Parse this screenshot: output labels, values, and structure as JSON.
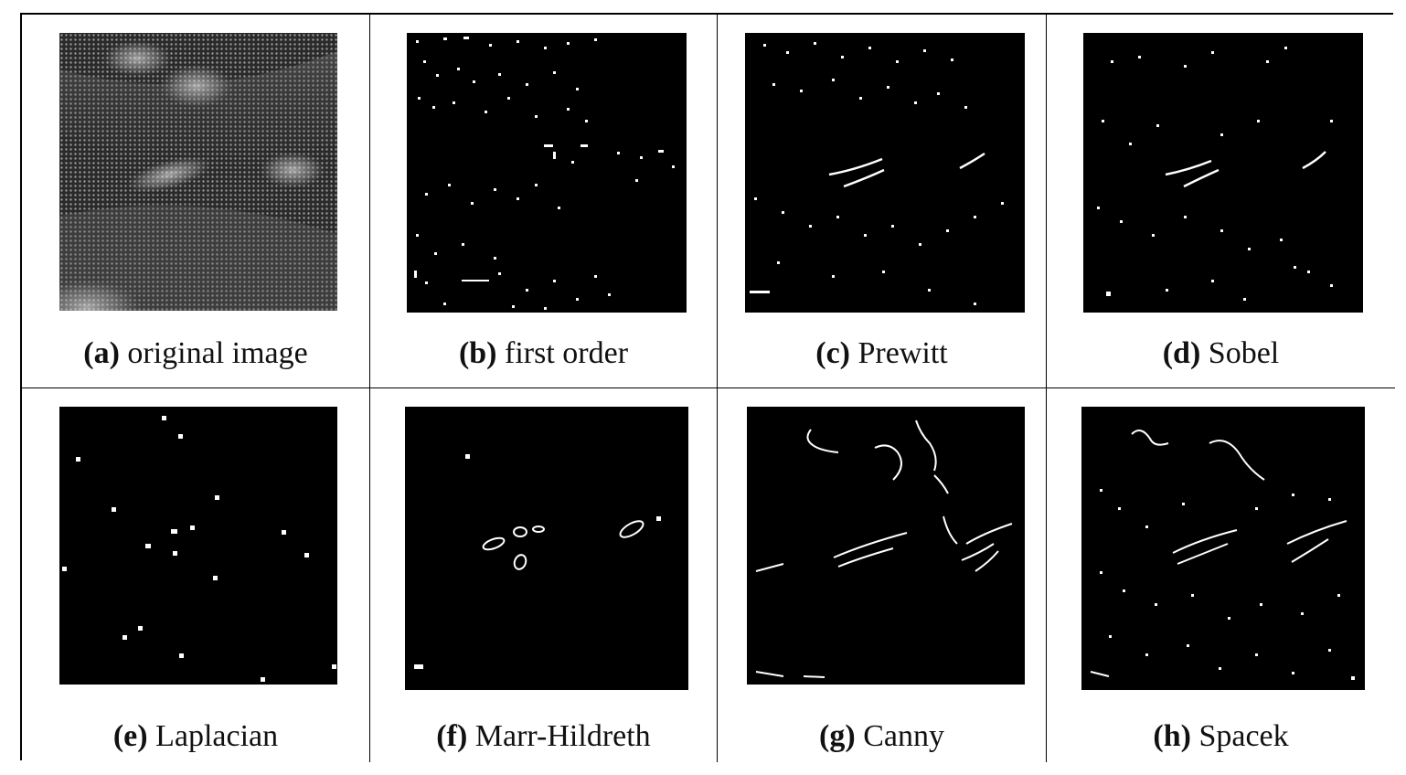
{
  "figure": {
    "panels": [
      {
        "letter": "(a)",
        "label": "original image",
        "kind": "original"
      },
      {
        "letter": "(b)",
        "label": "first order",
        "kind": "edges"
      },
      {
        "letter": "(c)",
        "label": "Prewitt",
        "kind": "edges"
      },
      {
        "letter": "(d)",
        "label": "Sobel",
        "kind": "edges"
      },
      {
        "letter": "(e)",
        "label": "Laplacian",
        "kind": "edges"
      },
      {
        "letter": "(f)",
        "label": "Marr-Hildreth",
        "kind": "edges"
      },
      {
        "letter": "(g)",
        "label": "Canny",
        "kind": "edges"
      },
      {
        "letter": "(h)",
        "label": "Spacek",
        "kind": "edges"
      }
    ]
  }
}
